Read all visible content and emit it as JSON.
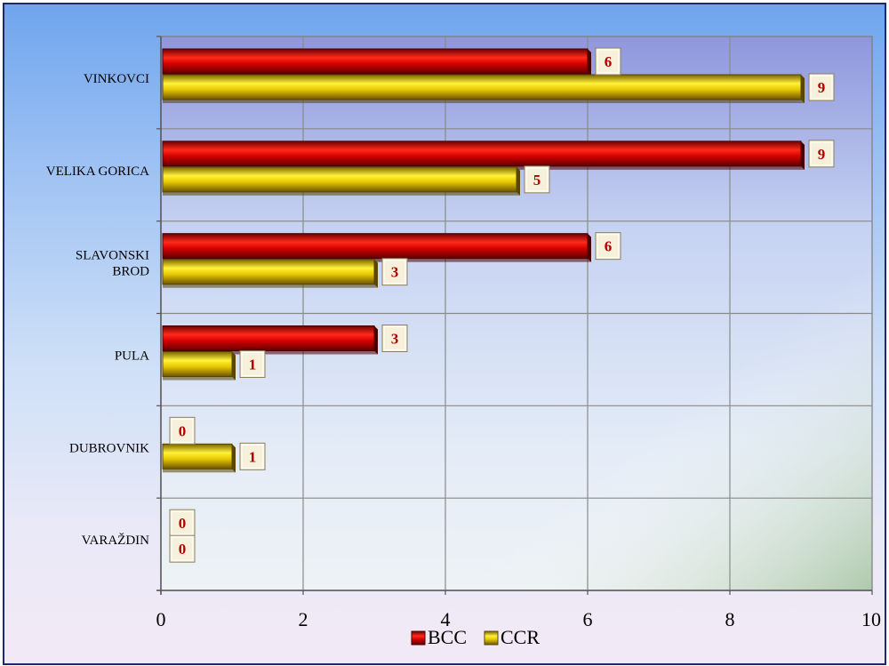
{
  "chart_data": {
    "type": "bar",
    "orientation": "horizontal",
    "categories": [
      "VINKOVCI",
      "VELIKA GORICA",
      "SLAVONSKI BROD",
      "PULA",
      "DUBROVNIK",
      "VARAŽDIN"
    ],
    "category_lines": [
      [
        "VINKOVCI"
      ],
      [
        "VELIKA GORICA"
      ],
      [
        "SLAVONSKI",
        "BROD"
      ],
      [
        "PULA"
      ],
      [
        "DUBROVNIK"
      ],
      [
        "VARAŽDIN"
      ]
    ],
    "series": [
      {
        "name": "BCC",
        "values": [
          6,
          9,
          6,
          3,
          0,
          0
        ],
        "color": "#c00000"
      },
      {
        "name": "CCR",
        "values": [
          9,
          5,
          3,
          1,
          1,
          0
        ],
        "color": "#e6c200"
      }
    ],
    "xlim": [
      0,
      10
    ],
    "xticks": [
      "0",
      "2",
      "4",
      "6",
      "8",
      "10"
    ],
    "grid": true,
    "legend": "bottom",
    "data_labels": true
  }
}
